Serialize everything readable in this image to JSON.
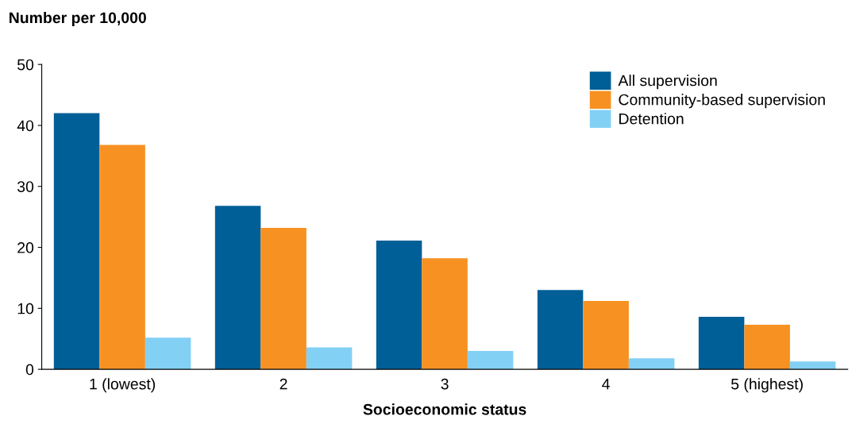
{
  "chart_data": {
    "type": "bar",
    "ylabel": "Number per 10,000",
    "xlabel": "Socioeconomic status",
    "categories": [
      "1 (lowest)",
      "2",
      "3",
      "4",
      "5 (highest)"
    ],
    "series": [
      {
        "name": "All supervision",
        "color": "#005f96",
        "values": [
          42,
          26.8,
          21.1,
          13.0,
          8.6
        ]
      },
      {
        "name": "Community-based supervision",
        "color": "#f79122",
        "values": [
          36.8,
          23.2,
          18.2,
          11.2,
          7.3
        ]
      },
      {
        "name": "Detention",
        "color": "#83d0f5",
        "values": [
          5.2,
          3.6,
          3.0,
          1.8,
          1.3
        ]
      }
    ],
    "ylim": [
      0,
      50
    ],
    "yticks": [
      0,
      10,
      20,
      30,
      40,
      50
    ],
    "grid": false,
    "legend": "top right"
  }
}
